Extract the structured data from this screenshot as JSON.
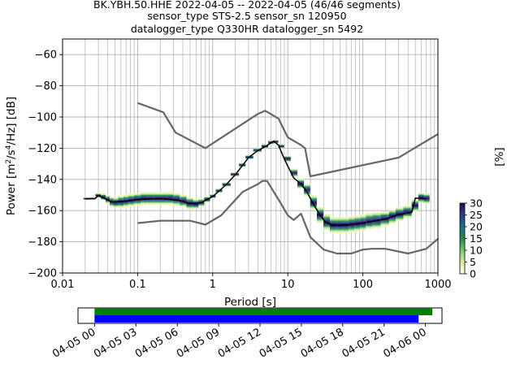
{
  "title_lines": [
    "BK.YBH.50.HHE   2022-04-05 -- 2022-04-05  (46/46 segments)",
    "sensor_type STS-2.5 sensor_sn 120950",
    "datalogger_type Q330HR datalogger_sn 5492"
  ],
  "chart_data": [
    {
      "type": "heatmap",
      "xlabel": "Period [s]",
      "ylabel": "Power [m²/s⁴/Hz] [dB]",
      "xscale": "log",
      "xlim": [
        0.01,
        1000
      ],
      "ylim": [
        -200,
        -50
      ],
      "grid": true,
      "x_ticks": [
        {
          "value": 0.01,
          "label": "0.01"
        },
        {
          "value": 0.1,
          "label": "0.1"
        },
        {
          "value": 1,
          "label": "1"
        },
        {
          "value": 10,
          "label": "10"
        },
        {
          "value": 100,
          "label": "100"
        },
        {
          "value": 1000,
          "label": "1000"
        }
      ],
      "y_ticks": [
        {
          "value": -60,
          "label": "−60"
        },
        {
          "value": -80,
          "label": "−80"
        },
        {
          "value": -100,
          "label": "−100"
        },
        {
          "value": -120,
          "label": "−120"
        },
        {
          "value": -140,
          "label": "−140"
        },
        {
          "value": -160,
          "label": "−160"
        },
        {
          "value": -180,
          "label": "−180"
        },
        {
          "value": -200,
          "label": "−200"
        }
      ],
      "colorbar": {
        "label": "[%]",
        "range": [
          0,
          30
        ],
        "ticks": [
          {
            "value": 0,
            "label": "0"
          },
          {
            "value": 5,
            "label": "5"
          },
          {
            "value": 10,
            "label": "10"
          },
          {
            "value": 15,
            "label": "15"
          },
          {
            "value": 20,
            "label": "20"
          },
          {
            "value": 25,
            "label": "25"
          },
          {
            "value": 30,
            "label": "30"
          }
        ],
        "colors": [
          "#ffffe5",
          "#d9f0a3",
          "#78c679",
          "#238b45",
          "#1d6f8a",
          "#2a3f8c",
          "#2d0a4e"
        ]
      },
      "series": [
        {
          "color": "#666666",
          "values": [
            [
              0.1,
              -91
            ],
            [
              0.22,
              -97
            ],
            [
              0.32,
              -110
            ],
            [
              0.8,
              -120
            ],
            [
              4,
              -98
            ],
            [
              5,
              -96
            ],
            [
              7.5,
              -101
            ],
            [
              10,
              -113
            ],
            [
              15,
              -118
            ],
            [
              17,
              -120
            ],
            [
              20,
              -138
            ],
            [
              300,
              -126
            ],
            [
              1000,
              -111
            ]
          ]
        },
        {
          "color": "#666666",
          "values": [
            [
              0.1,
              -168
            ],
            [
              0.2,
              -166.5
            ],
            [
              0.5,
              -166.5
            ],
            [
              0.8,
              -169
            ],
            [
              1.3,
              -163
            ],
            [
              2.5,
              -148
            ],
            [
              4,
              -143
            ],
            [
              4.6,
              -141
            ],
            [
              5.3,
              -141
            ],
            [
              8,
              -155
            ],
            [
              10,
              -163
            ],
            [
              12,
              -166
            ],
            [
              15,
              -162
            ],
            [
              20,
              -177
            ],
            [
              30,
              -185
            ],
            [
              45,
              -187.5
            ],
            [
              70,
              -187.5
            ],
            [
              100,
              -185
            ],
            [
              130,
              -184.5
            ],
            [
              200,
              -184.5
            ],
            [
              400,
              -187.5
            ],
            [
              700,
              -184.5
            ],
            [
              1000,
              -178
            ]
          ]
        },
        {
          "color": "#000000",
          "values": [
            [
              0.02,
              -152.5
            ],
            [
              0.027,
              -152.3
            ],
            [
              0.03,
              -150.5
            ],
            [
              0.035,
              -152
            ],
            [
              0.045,
              -154.5
            ],
            [
              0.07,
              -154
            ],
            [
              0.1,
              -153
            ],
            [
              0.15,
              -152.5
            ],
            [
              0.22,
              -152.5
            ],
            [
              0.35,
              -153.5
            ],
            [
              0.5,
              -155.5
            ],
            [
              0.7,
              -155
            ],
            [
              1,
              -151
            ],
            [
              1.5,
              -143.5
            ],
            [
              2,
              -137
            ],
            [
              2.5,
              -131
            ],
            [
              3,
              -126
            ],
            [
              4,
              -121.5
            ],
            [
              5,
              -119
            ],
            [
              6,
              -116.5
            ],
            [
              6.5,
              -115.5
            ],
            [
              7.5,
              -118
            ],
            [
              9,
              -127
            ],
            [
              10,
              -131.5
            ],
            [
              12,
              -139
            ],
            [
              15,
              -143
            ],
            [
              18,
              -148
            ],
            [
              22,
              -156
            ],
            [
              27,
              -163
            ],
            [
              32,
              -167.5
            ],
            [
              40,
              -169.5
            ],
            [
              50,
              -169.5
            ],
            [
              70,
              -169
            ],
            [
              100,
              -168
            ],
            [
              130,
              -167
            ],
            [
              200,
              -165.5
            ],
            [
              300,
              -162.5
            ],
            [
              450,
              -161
            ],
            [
              500,
              -152
            ],
            [
              700,
              -152.5
            ]
          ]
        }
      ],
      "heatmap_data": {
        "x": [
          0.02,
          0.025,
          0.03,
          0.035,
          0.04,
          0.045,
          0.05,
          0.06,
          0.07,
          0.08,
          0.1,
          0.12,
          0.15,
          0.18,
          0.22,
          0.27,
          0.33,
          0.4,
          0.5,
          0.6,
          0.7,
          0.85,
          1,
          1.2,
          1.5,
          2,
          2.5,
          3,
          4,
          5,
          6,
          7,
          8,
          10,
          12,
          15,
          18,
          22,
          27,
          33,
          40,
          50,
          60,
          70,
          85,
          100,
          120,
          150,
          200,
          250,
          300,
          400,
          500,
          600,
          700
        ],
        "y_center": [
          -152.5,
          -152.5,
          -150.5,
          -151.5,
          -153,
          -154.5,
          -155,
          -154.5,
          -154,
          -153.5,
          -153,
          -152.5,
          -152.5,
          -152.5,
          -152.5,
          -152.5,
          -153,
          -154,
          -155.5,
          -156,
          -155,
          -153,
          -151,
          -147.5,
          -143.5,
          -137,
          -131,
          -126,
          -121.5,
          -119,
          -116.5,
          -116,
          -119,
          -127,
          -136,
          -143,
          -147,
          -155,
          -163,
          -167.5,
          -169.5,
          -169.5,
          -169.5,
          -169,
          -168.5,
          -168,
          -167,
          -166.5,
          -165.5,
          -164,
          -162.5,
          -161,
          -157,
          -152,
          -152.5
        ],
        "spread": [
          1,
          1,
          2,
          3,
          4,
          5,
          5,
          6,
          6,
          6,
          6,
          6,
          6,
          6,
          6,
          6,
          6,
          6,
          6,
          5,
          4,
          3,
          2,
          2,
          2,
          2,
          2,
          2,
          2,
          2,
          2,
          2,
          2,
          3,
          4,
          5,
          6,
          7,
          8,
          8,
          8,
          8,
          8,
          8,
          8,
          8,
          8,
          8,
          7,
          7,
          7,
          6,
          6,
          5,
          5
        ],
        "peak_percent": 30
      }
    },
    {
      "type": "bar",
      "orientation": "horizontal",
      "xlim": [
        "04-05 00",
        "04-06 00"
      ],
      "x_ticks": [
        {
          "value": 0,
          "label": "04-05 00"
        },
        {
          "value": 3,
          "label": "04-05 03"
        },
        {
          "value": 6,
          "label": "04-05 06"
        },
        {
          "value": 9,
          "label": "04-05 09"
        },
        {
          "value": 12,
          "label": "04-05 12"
        },
        {
          "value": 15,
          "label": "04-05 15"
        },
        {
          "value": 18,
          "label": "04-05 18"
        },
        {
          "value": 21,
          "label": "04-05 21"
        },
        {
          "value": 24,
          "label": "04-06 00"
        }
      ],
      "xlim_hours": [
        -1.2,
        25.2
      ],
      "bars": [
        {
          "color": "#008000",
          "start_hours": 0,
          "end_hours": 24.5
        },
        {
          "color": "#0000ff",
          "start_hours": 0,
          "end_hours": 23.5
        }
      ]
    }
  ]
}
